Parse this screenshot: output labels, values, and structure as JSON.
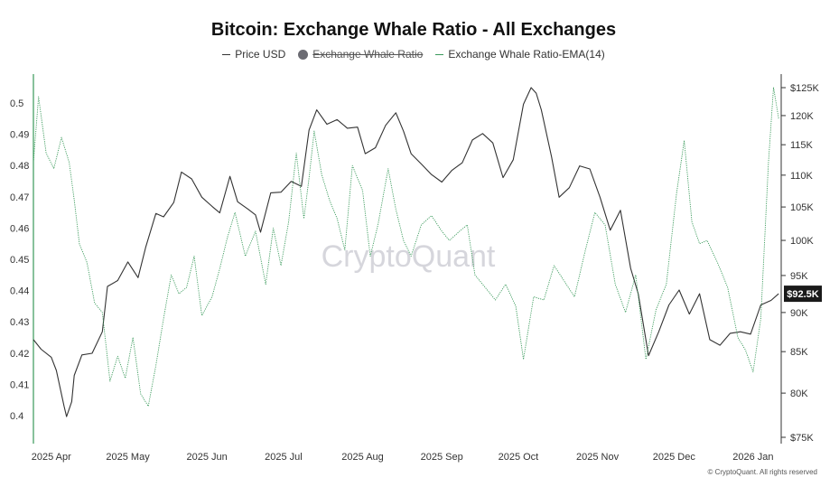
{
  "chart_data": {
    "type": "line",
    "title": "Bitcoin: Exchange Whale Ratio - All Exchanges",
    "watermark": "CryptoQuant",
    "copyright": "© CryptoQuant. All rights reserved",
    "legend": {
      "placement": "top-center",
      "items": [
        {
          "label": "Price USD",
          "style": "line",
          "color": "#333333"
        },
        {
          "label": "Exchange Whale Ratio",
          "style": "dot-disabled",
          "color": "#6b6b72"
        },
        {
          "label": "Exchange Whale Ratio-EMA(14)",
          "style": "line",
          "color": "#3a9a5b"
        }
      ]
    },
    "x_axis": {
      "ticks": [
        "2025 Apr",
        "2025 May",
        "2025 Jun",
        "2025 Jul",
        "2025 Aug",
        "2025 Sep",
        "2025 Oct",
        "2025 Nov",
        "2025 Dec",
        "2026 Jan"
      ],
      "range": [
        "2025-03-25",
        "2026-01-12"
      ]
    },
    "y_left": {
      "ticks": [
        "0.4",
        "0.41",
        "0.42",
        "0.43",
        "0.44",
        "0.45",
        "0.46",
        "0.47",
        "0.48",
        "0.49",
        "0.5"
      ],
      "range": [
        0.393,
        0.51
      ]
    },
    "y_right": {
      "scale": "log",
      "ticks": [
        {
          "label": "$75K",
          "value": 75000
        },
        {
          "label": "80K",
          "value": 80000
        },
        {
          "label": "85K",
          "value": 85000
        },
        {
          "label": "90K",
          "value": 90000
        },
        {
          "label": "95K",
          "value": 95000
        },
        {
          "label": "100K",
          "value": 100000
        },
        {
          "label": "105K",
          "value": 105000
        },
        {
          "label": "110K",
          "value": 110000
        },
        {
          "label": "115K",
          "value": 115000
        },
        {
          "label": "120K",
          "value": 120000
        },
        {
          "label": "$125K",
          "value": 125000
        }
      ],
      "current_price_label": "$92.5K",
      "current_price_value": 92500
    },
    "grid": false,
    "series": [
      {
        "name": "Price USD",
        "axis": "right",
        "color": "#333333",
        "x": [
          "2025-03-25",
          "2025-03-28",
          "2025-04-01",
          "2025-04-03",
          "2025-04-06",
          "2025-04-07",
          "2025-04-09",
          "2025-04-10",
          "2025-04-13",
          "2025-04-17",
          "2025-04-21",
          "2025-04-23",
          "2025-04-27",
          "2025-05-01",
          "2025-05-05",
          "2025-05-08",
          "2025-05-12",
          "2025-05-15",
          "2025-05-19",
          "2025-05-22",
          "2025-05-26",
          "2025-05-30",
          "2025-06-03",
          "2025-06-06",
          "2025-06-10",
          "2025-06-13",
          "2025-06-17",
          "2025-06-20",
          "2025-06-22",
          "2025-06-26",
          "2025-06-30",
          "2025-07-04",
          "2025-07-08",
          "2025-07-11",
          "2025-07-14",
          "2025-07-18",
          "2025-07-22",
          "2025-07-26",
          "2025-07-30",
          "2025-08-02",
          "2025-08-06",
          "2025-08-10",
          "2025-08-14",
          "2025-08-17",
          "2025-08-20",
          "2025-08-24",
          "2025-08-28",
          "2025-09-01",
          "2025-09-05",
          "2025-09-09",
          "2025-09-13",
          "2025-09-17",
          "2025-09-21",
          "2025-09-25",
          "2025-09-29",
          "2025-10-03",
          "2025-10-06",
          "2025-10-08",
          "2025-10-10",
          "2025-10-14",
          "2025-10-17",
          "2025-10-21",
          "2025-10-25",
          "2025-10-29",
          "2025-11-02",
          "2025-11-06",
          "2025-11-10",
          "2025-11-14",
          "2025-11-17",
          "2025-11-21",
          "2025-11-25",
          "2025-11-29",
          "2025-12-03",
          "2025-12-07",
          "2025-12-11",
          "2025-12-15",
          "2025-12-19",
          "2025-12-23",
          "2025-12-27",
          "2025-12-31",
          "2026-01-04",
          "2026-01-08",
          "2026-01-11"
        ],
        "values": [
          86500,
          85300,
          84300,
          82700,
          78500,
          77300,
          79000,
          82100,
          84600,
          84800,
          87500,
          93500,
          94300,
          96900,
          94700,
          99000,
          104000,
          103500,
          105700,
          110500,
          109400,
          106500,
          105100,
          104100,
          109800,
          105800,
          104700,
          103800,
          101200,
          107200,
          107300,
          109000,
          108200,
          117500,
          121000,
          118500,
          119300,
          117800,
          118000,
          113500,
          114500,
          118300,
          120500,
          117300,
          113500,
          111800,
          110100,
          108900,
          110800,
          112000,
          115800,
          116900,
          115300,
          109600,
          112500,
          122000,
          125000,
          124000,
          121000,
          113000,
          106500,
          108000,
          111500,
          111000,
          106500,
          101500,
          104500,
          96000,
          92500,
          84500,
          87500,
          91000,
          93000,
          89800,
          92500,
          86500,
          85800,
          87300,
          87500,
          87200,
          91000,
          91600,
          92500
        ]
      },
      {
        "name": "Exchange Whale Ratio-EMA(14)",
        "axis": "left",
        "color": "#3a9a5b",
        "x": [
          "2025-03-25",
          "2025-03-27",
          "2025-03-30",
          "2025-04-02",
          "2025-04-05",
          "2025-04-08",
          "2025-04-10",
          "2025-04-12",
          "2025-04-15",
          "2025-04-18",
          "2025-04-21",
          "2025-04-24",
          "2025-04-27",
          "2025-04-30",
          "2025-05-03",
          "2025-05-06",
          "2025-05-09",
          "2025-05-12",
          "2025-05-15",
          "2025-05-18",
          "2025-05-21",
          "2025-05-24",
          "2025-05-27",
          "2025-05-30",
          "2025-06-03",
          "2025-06-06",
          "2025-06-09",
          "2025-06-12",
          "2025-06-16",
          "2025-06-20",
          "2025-06-24",
          "2025-06-27",
          "2025-06-30",
          "2025-07-03",
          "2025-07-06",
          "2025-07-09",
          "2025-07-11",
          "2025-07-13",
          "2025-07-16",
          "2025-07-19",
          "2025-07-22",
          "2025-07-25",
          "2025-07-28",
          "2025-08-01",
          "2025-08-04",
          "2025-08-07",
          "2025-08-11",
          "2025-08-14",
          "2025-08-17",
          "2025-08-20",
          "2025-08-24",
          "2025-08-28",
          "2025-09-01",
          "2025-09-04",
          "2025-09-08",
          "2025-09-11",
          "2025-09-14",
          "2025-09-18",
          "2025-09-22",
          "2025-09-26",
          "2025-09-30",
          "2025-10-03",
          "2025-10-07",
          "2025-10-11",
          "2025-10-15",
          "2025-10-19",
          "2025-10-23",
          "2025-10-27",
          "2025-10-31",
          "2025-11-04",
          "2025-11-08",
          "2025-11-12",
          "2025-11-16",
          "2025-11-20",
          "2025-11-24",
          "2025-11-28",
          "2025-12-02",
          "2025-12-05",
          "2025-12-08",
          "2025-12-11",
          "2025-12-14",
          "2025-12-18",
          "2025-12-22",
          "2025-12-26",
          "2025-12-29",
          "2026-01-01",
          "2026-01-04",
          "2026-01-07",
          "2026-01-09",
          "2026-01-11"
        ],
        "values": [
          0.481,
          0.502,
          0.484,
          0.479,
          0.489,
          0.481,
          0.469,
          0.455,
          0.449,
          0.436,
          0.433,
          0.411,
          0.419,
          0.412,
          0.425,
          0.407,
          0.403,
          0.416,
          0.431,
          0.445,
          0.439,
          0.441,
          0.451,
          0.432,
          0.438,
          0.447,
          0.457,
          0.465,
          0.451,
          0.459,
          0.442,
          0.46,
          0.448,
          0.462,
          0.484,
          0.463,
          0.476,
          0.491,
          0.477,
          0.469,
          0.463,
          0.453,
          0.48,
          0.472,
          0.451,
          0.461,
          0.479,
          0.466,
          0.456,
          0.451,
          0.461,
          0.464,
          0.459,
          0.456,
          0.459,
          0.461,
          0.445,
          0.441,
          0.437,
          0.442,
          0.435,
          0.418,
          0.438,
          0.437,
          0.448,
          0.443,
          0.438,
          0.452,
          0.465,
          0.461,
          0.442,
          0.433,
          0.445,
          0.418,
          0.434,
          0.442,
          0.471,
          0.488,
          0.462,
          0.455,
          0.456,
          0.449,
          0.441,
          0.425,
          0.421,
          0.414,
          0.431,
          0.481,
          0.505,
          0.495
        ]
      }
    ]
  }
}
